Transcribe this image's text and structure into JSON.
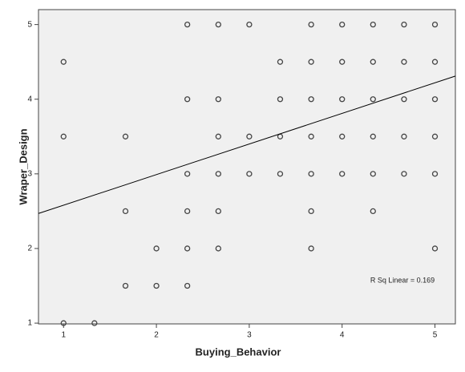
{
  "chart_data": {
    "type": "scatter",
    "x_label": "Buying_Behavior",
    "y_label": "Wraper_Design",
    "annotation": "R Sq Linear = 0.169",
    "xlim": [
      0.73,
      5.22
    ],
    "ylim": [
      0.99,
      5.2
    ],
    "xticks": [
      1,
      2,
      3,
      4,
      5
    ],
    "yticks": [
      1,
      2,
      3,
      4,
      5
    ],
    "fit_line": {
      "intercept": 2.17,
      "slope": 0.41
    },
    "series": [
      {
        "color": "#444444",
        "x": [
          1,
          1,
          1,
          1.333,
          1.667,
          1.667,
          1.667,
          2,
          2,
          2.333,
          2.333,
          2.333,
          2.333,
          2.333,
          2.333,
          2.667,
          2.667,
          2.667,
          2.667,
          2.667,
          2.667,
          3,
          3,
          3,
          3.333,
          3.333,
          3.333,
          3.333,
          3.667,
          3.667,
          3.667,
          3.667,
          3.667,
          3.667,
          3.667,
          4,
          4,
          4,
          4,
          4,
          4.333,
          4.333,
          4.333,
          4.333,
          4.333,
          4.333,
          4.667,
          4.667,
          4.667,
          4.667,
          4.667,
          5,
          5,
          5,
          5,
          5,
          5
        ],
        "y": [
          4.5,
          3.5,
          1,
          1,
          3.5,
          2.5,
          1.5,
          2,
          1.5,
          5,
          4,
          3,
          2.5,
          2,
          1.5,
          5,
          4,
          3.5,
          3,
          2.5,
          2,
          5,
          3.5,
          3,
          4.5,
          4,
          3.5,
          3,
          5,
          4.5,
          4,
          3.5,
          3,
          2.5,
          2,
          5,
          4.5,
          4,
          3.5,
          3,
          5,
          4.5,
          4,
          3.5,
          3,
          2.5,
          5,
          4.5,
          4,
          3.5,
          3,
          5,
          4.5,
          4,
          3.5,
          3,
          2
        ]
      }
    ]
  }
}
